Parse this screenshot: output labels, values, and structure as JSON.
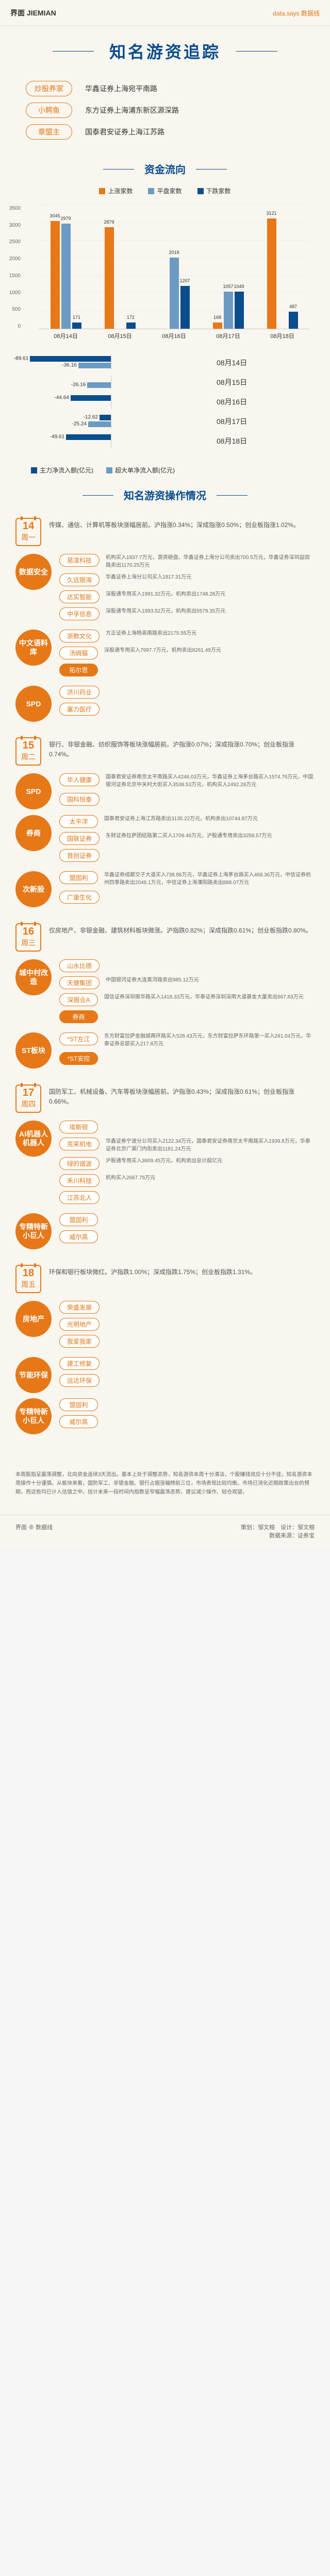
{
  "header": {
    "logo": "界面 JIEMIAN",
    "dataLogo": "data.says 数据线"
  },
  "mainTitle": "知名游资追踪",
  "seats": [
    {
      "label": "炒股养家",
      "val": "华鑫证券上海宛平南路"
    },
    {
      "label": "小鳄鱼",
      "val": "东方证券上海浦东新区源深路"
    },
    {
      "label": "章盟主",
      "val": "国泰君安证券上海江苏路"
    }
  ],
  "sec1": "资金流向",
  "chart1": {
    "legend": [
      {
        "color": "#e67817",
        "label": "上涨家数"
      },
      {
        "color": "#6b9bc3",
        "label": "平盘家数"
      },
      {
        "color": "#0a4d8c",
        "label": "下跌家数"
      }
    ],
    "yticks": [
      "3500",
      "3000",
      "2500",
      "2000",
      "1500",
      "1000",
      "500",
      "0"
    ],
    "ymax": 3500,
    "dates": [
      "08月14日",
      "08月15日",
      "08月16日",
      "08月17日",
      "08月18日"
    ],
    "groups": [
      [
        {
          "v": 3045,
          "c": "#e67817"
        },
        {
          "v": 2979,
          "c": "#6b9bc3"
        },
        {
          "v": 171,
          "c": "#0a4d8c"
        }
      ],
      [
        {
          "v": 2879,
          "c": "#e67817"
        },
        {
          "v": null,
          "c": "#6b9bc3"
        },
        {
          "v": 172,
          "c": "#0a4d8c"
        }
      ],
      [
        {
          "v": null,
          "c": "#e67817"
        },
        {
          "v": 2019,
          "c": "#6b9bc3"
        },
        {
          "v": 1207,
          "c": "#0a4d8c"
        }
      ],
      [
        {
          "v": 168,
          "c": "#e67817"
        },
        {
          "v": 1057,
          "c": "#6b9bc3"
        },
        {
          "v": 1049,
          "c": "#0a4d8c"
        }
      ],
      [
        {
          "v": 3121,
          "c": "#e67817"
        },
        {
          "v": null,
          "c": "#6b9bc3"
        },
        {
          "v": 487,
          "c": "#0a4d8c"
        }
      ]
    ]
  },
  "chart2": {
    "max": 100,
    "rows": [
      {
        "date": "08月14日",
        "bars": [
          {
            "v": -89.61,
            "c": "#0a4d8c"
          },
          {
            "v": -36.16,
            "c": "#6b9bc3"
          }
        ]
      },
      {
        "date": "08月15日",
        "bars": [
          {
            "v": null,
            "c": "#0a4d8c"
          },
          {
            "v": -26.16,
            "c": "#6b9bc3"
          }
        ]
      },
      {
        "date": "08月16日",
        "bars": [
          {
            "v": -44.64,
            "c": "#0a4d8c"
          },
          {
            "v": null,
            "c": "#6b9bc3"
          }
        ]
      },
      {
        "date": "08月17日",
        "bars": [
          {
            "v": -12.62,
            "c": "#0a4d8c"
          },
          {
            "v": -25.24,
            "c": "#6b9bc3"
          }
        ]
      },
      {
        "date": "08月18日",
        "bars": [
          {
            "v": -49.61,
            "c": "#0a4d8c"
          },
          {
            "v": null,
            "c": "#6b9bc3"
          }
        ]
      }
    ],
    "legend": [
      {
        "color": "#0a4d8c",
        "label": "主力净流入额(亿元)"
      },
      {
        "color": "#6b9bc3",
        "label": "超大单净流入额(亿元)"
      }
    ]
  },
  "sec2": "知名游资操作情况",
  "days": [
    {
      "num": "14",
      "day": "周一",
      "desc": "传媒、通信、计算机等板块涨幅居前。沪指涨0.34%；深成指涨0.50%；创业板指涨1.02%。",
      "themes": [
        {
          "circle": "数据安全",
          "items": [
            {
              "pill": "易凌科技",
              "desc": "机构买入1837.7万元，游资砸盘。华鑫证券上海分公司卖出700.5万元，华鑫证券深圳益田路卖出1170.25万元"
            },
            {
              "pill": "久远银海",
              "desc": "华鑫证券上海分公司买入1817.31万元"
            },
            {
              "pill": "达实智能",
              "desc": "深股通专用买入1991.32万元，机构卖出1748.28万元"
            },
            {
              "pill": "中孚信息",
              "desc": "深股通专用买入1993.52万元，机构卖出5579.35万元"
            }
          ]
        },
        {
          "circle": "中文语料库",
          "items": [
            {
              "pill": "浙数文化",
              "desc": "方正证券上海杨高南路卖出2175.55万元"
            },
            {
              "pill": "汤姆猫",
              "desc": "深股通专用买入7997.7万元，机构卖出8261.49万元"
            },
            {
              "pill": "拓尔思",
              "filled": true,
              "desc": ""
            }
          ]
        },
        {
          "circle": "SPD",
          "items": [
            {
              "pill": "济川药业",
              "desc": ""
            },
            {
              "pill": "塞力医疗",
              "desc": ""
            }
          ]
        }
      ]
    },
    {
      "num": "15",
      "day": "周二",
      "desc": "银行、非银金融、纺织服饰等板块涨幅居前。沪指涨0.07%；深成指涨0.70%；创业板指涨0.74%。",
      "themes": [
        {
          "circle": "SPD",
          "items": [
            {
              "pill": "华人健康",
              "desc": "国泰君安证券南京太平南路买入4246.03万元，华鑫证券上海茅台路买入1574.76万元，中国银河证券北京中关村大街买入3538.53万元，机构买入2492.28万元"
            },
            {
              "pill": "国科恒泰",
              "desc": ""
            }
          ]
        },
        {
          "circle": "券商",
          "items": [
            {
              "pill": "太平洋",
              "desc": "国泰君安证券上海江苏路卖出3135.22万元，机构卖出10744.87万元"
            },
            {
              "pill": "国联证券",
              "desc": "东财证券拉萨团结路第二买入1709.46万元，沪股通专用卖出3258.57万元"
            },
            {
              "pill": "首创证券",
              "desc": ""
            }
          ]
        },
        {
          "circle": "次新股",
          "items": [
            {
              "pill": "盟固利",
              "desc": "华鑫证券成都交子大道买入738.88万元，华鑫证券上海茅台路买入468.36万元，中信证券杭州四季路卖出2046.1万元，中信证券上海溧阳路卖出888.07万元"
            },
            {
              "pill": "广康生化",
              "desc": ""
            }
          ]
        }
      ]
    },
    {
      "num": "16",
      "day": "周三",
      "desc": "仅房地产、非银金融、建筑材料板块微涨。沪指跌0.82%；深成指跌0.61%；创业板指跌0.80%。",
      "themes": [
        {
          "circle": "城中村改造",
          "items": [
            {
              "pill": "山水比德",
              "desc": ""
            },
            {
              "pill": "天健集团",
              "desc": "中国银河证券大连黄河路卖出985.12万元"
            },
            {
              "pill": "深振业A",
              "desc": "国信证券深圳振华路买入1418.33万元，华泰证券深圳深南大道基金大厦卖出667.83万元"
            },
            {
              "pill": "券商",
              "filled": true,
              "desc": ""
            }
          ]
        },
        {
          "circle": "ST板块",
          "items": [
            {
              "pill": "*ST左江",
              "desc": "东方财富拉萨金融城南环路买入528.43万元，东方财富拉萨东环路第一买入241.04万元，华泰证券总部买入217.8万元"
            },
            {
              "pill": "*ST安控",
              "filled": true,
              "desc": ""
            }
          ]
        }
      ]
    },
    {
      "num": "17",
      "day": "周四",
      "desc": "国防军工、机械设备、汽车等板块涨幅居前。沪指涨0.43%；深成指涨0.61%；创业板指涨0.66%。",
      "themes": [
        {
          "circle": "AI机器人机器人",
          "items": [
            {
              "pill": "埃斯顿",
              "desc": ""
            },
            {
              "pill": "克来机电",
              "desc": "华鑫证券宁波分公司买入2122.34万元，国泰君安证券南京太平南路买入1939.8万元，华泰证券北京广渠门内街卖出1181.24万元"
            },
            {
              "pill": "绿的谐波",
              "desc": "沪股通专用买入3609.45万元，机构卖出总计超亿元"
            },
            {
              "pill": "禾川科技",
              "desc": "机构买入2667.75万元"
            },
            {
              "pill": "江苏北人",
              "desc": ""
            }
          ]
        },
        {
          "circle": "专精特新小巨人",
          "items": [
            {
              "pill": "盟固利",
              "desc": ""
            },
            {
              "pill": "威尔高",
              "desc": ""
            }
          ]
        }
      ]
    },
    {
      "num": "18",
      "day": "周五",
      "desc": "环保和银行板块微红。沪指跌1.00%；深成指跌1.75%；创业板指跌1.31%。",
      "themes": [
        {
          "circle": "房地产",
          "items": [
            {
              "pill": "荣盛发展",
              "desc": ""
            },
            {
              "pill": "光明地产",
              "desc": ""
            },
            {
              "pill": "我爱我家",
              "desc": ""
            }
          ]
        },
        {
          "circle": "节能环保",
          "items": [
            {
              "pill": "建工修复",
              "desc": ""
            },
            {
              "pill": "远达环保",
              "desc": ""
            }
          ]
        },
        {
          "circle": "专精特新小巨人",
          "items": [
            {
              "pill": "盟固利",
              "desc": ""
            },
            {
              "pill": "威尔高",
              "desc": ""
            }
          ]
        }
      ]
    }
  ],
  "footer": "本周股指呈震荡调整，北向资金连续3天流出。基本上处于调整态势，知名游资本周十分清淡，个股赚钱效应十分不佳，知名游资本周操作十分谨慎。从板块来看，国防军工、非银金融、银行占据涨幅榜前三位，市场表现比较均衡。市场已消化近期政策出台的预期，而这些均已计入估值之中。估计未来一段时间内指数呈窄幅震荡态势，建议减少操作、轻仓观望。",
  "credits": {
    "left": "界面 ⊕ 数据线",
    "right": "策划：邹文榕　设计：邹文榕\n数据来源：证券宝"
  }
}
